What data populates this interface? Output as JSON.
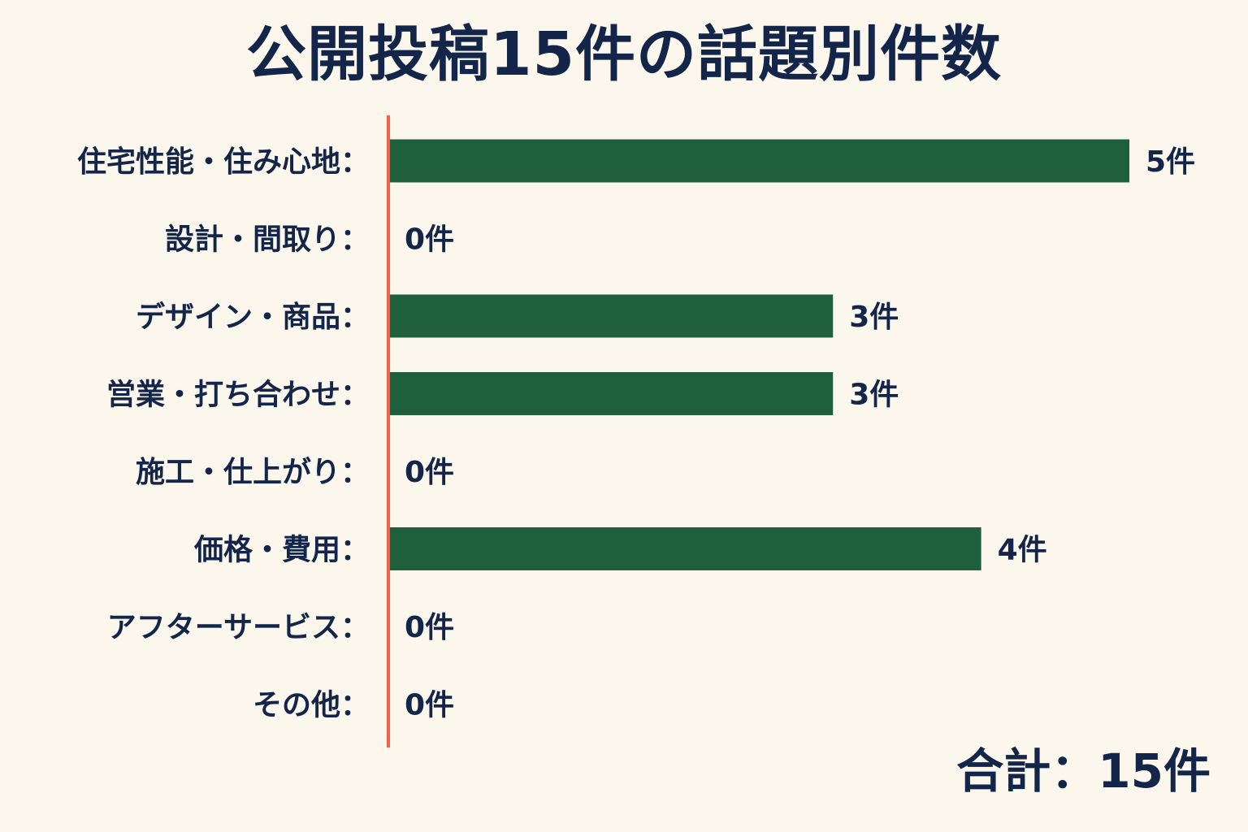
{
  "title": "公開投稿15件の話題別件数",
  "total_label": "合計：15件",
  "chart_data": {
    "type": "bar",
    "orientation": "horizontal",
    "title": "公開投稿15件の話題別件数",
    "categories": [
      "住宅性能・住み心地：",
      "設計・間取り：",
      "デザイン・商品：",
      "営業・打ち合わせ：",
      "施工・仕上がり：",
      "価格・費用：",
      "アフターサービス：",
      "その他："
    ],
    "values": [
      5,
      0,
      3,
      3,
      0,
      4,
      0,
      0
    ],
    "value_labels": [
      "5件",
      "0件",
      "3件",
      "3件",
      "0件",
      "4件",
      "0件",
      "0件"
    ],
    "xlim": [
      0,
      5
    ],
    "grid": false,
    "legend": "none",
    "colors": {
      "bar": "#1f5f3c",
      "axis": "#f0604a",
      "text": "#14254a",
      "background": "#fbf7ec"
    }
  }
}
